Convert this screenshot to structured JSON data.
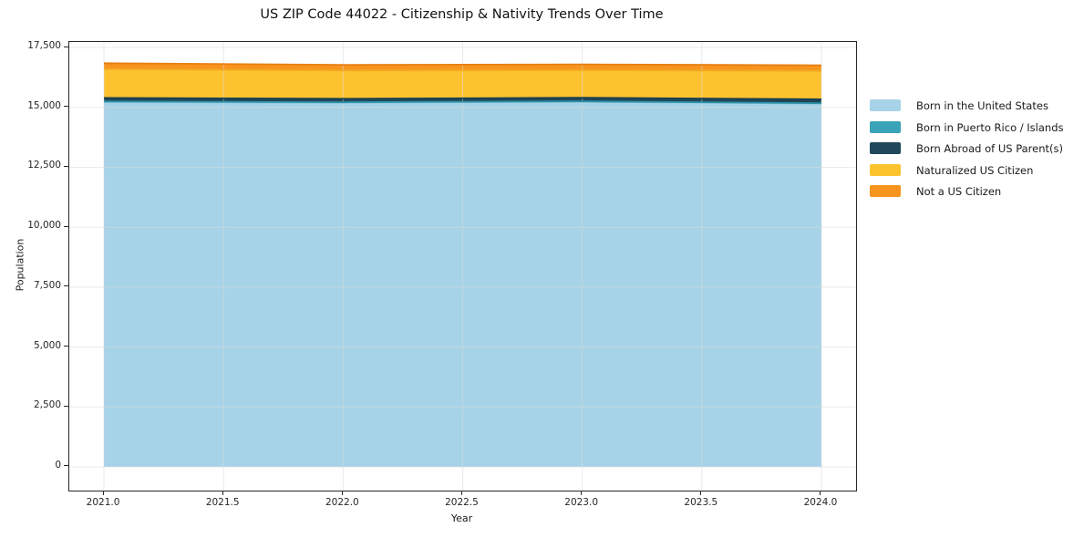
{
  "chart_data": {
    "type": "area",
    "stacked": true,
    "title": "US ZIP Code 44022 - Citizenship & Nativity Trends Over Time",
    "xlabel": "Year",
    "ylabel": "Population",
    "x": [
      2021,
      2022,
      2023,
      2024
    ],
    "series": [
      {
        "name": "Born in the United States",
        "color": "#a7d3e8",
        "edge_color": "#8ec4dd",
        "values": [
          15220,
          15190,
          15230,
          15155
        ]
      },
      {
        "name": "Born in Puerto Rico / Islands",
        "color": "#3aa3b8",
        "edge_color": "#2f93a8",
        "values": [
          25,
          25,
          20,
          20
        ]
      },
      {
        "name": "Born Abroad of US Parent(s)",
        "color": "#20485a",
        "edge_color": "#1b3e4e",
        "values": [
          150,
          145,
          150,
          160
        ]
      },
      {
        "name": "Naturalized US Citizen",
        "color": "#fdc32f",
        "edge_color": "#f3ab22",
        "values": [
          1200,
          1175,
          1150,
          1185
        ]
      },
      {
        "name": "Not a US Citizen",
        "color": "#f7941e",
        "edge_color": "#e87f12",
        "values": [
          250,
          240,
          245,
          235
        ]
      }
    ],
    "xticks": {
      "values": [
        2021.0,
        2021.5,
        2022.0,
        2022.5,
        2023.0,
        2023.5,
        2024.0
      ],
      "labels": [
        "2021.0",
        "2021.5",
        "2022.0",
        "2022.5",
        "2023.0",
        "2023.5",
        "2024.0"
      ]
    },
    "yticks": {
      "values": [
        0,
        2500,
        5000,
        7500,
        10000,
        12500,
        15000,
        17500
      ],
      "labels": [
        "0",
        "2,500",
        "5,000",
        "7,500",
        "10,000",
        "12,500",
        "15,000",
        "17,500"
      ]
    },
    "xlim": [
      2020.855,
      2024.145
    ],
    "ylim": [
      -990,
      17730
    ],
    "grid": true,
    "grid_color": "#d9d9d9",
    "legend_position": "right-outside"
  }
}
